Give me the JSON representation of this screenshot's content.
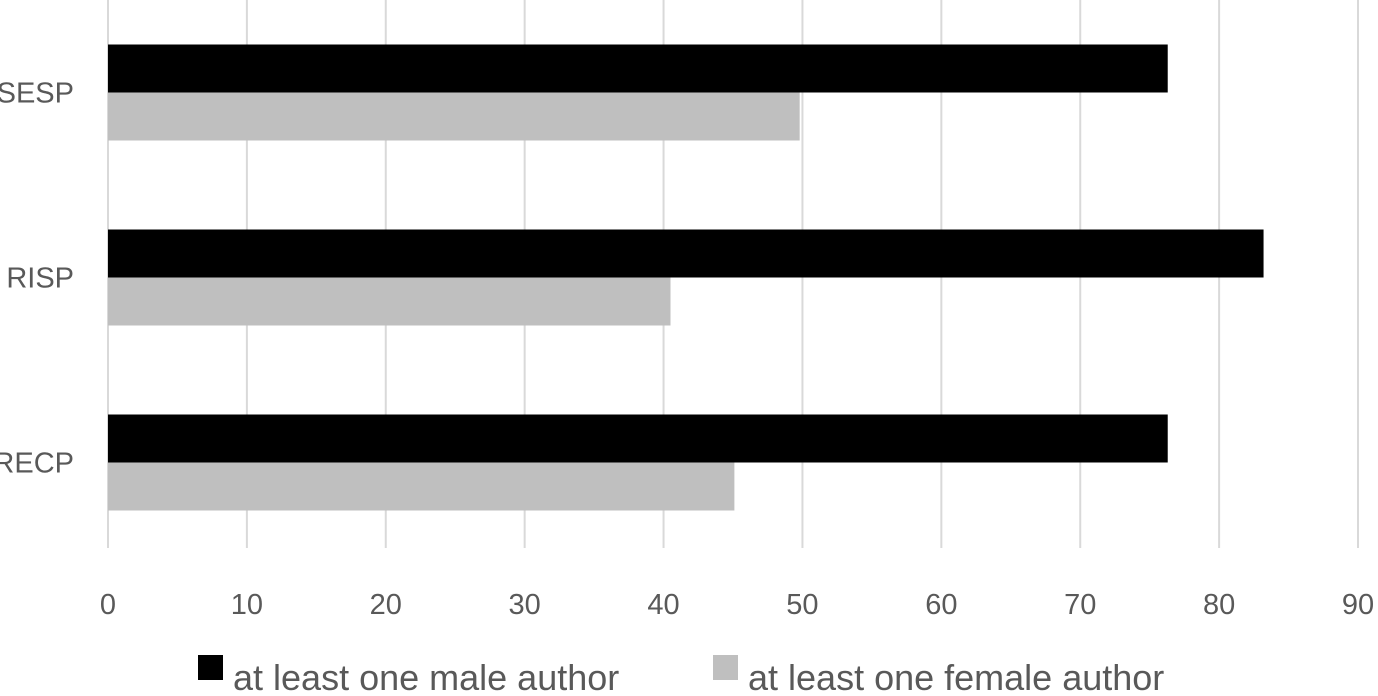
{
  "chart_data": {
    "type": "bar",
    "orientation": "horizontal",
    "categories": [
      "SESP",
      "RISP",
      "RECP"
    ],
    "series": [
      {
        "name": "at least one male author",
        "values": [
          76.3,
          83.2,
          76.3
        ],
        "color": "#000000"
      },
      {
        "name": "at least one female author",
        "values": [
          49.8,
          40.5,
          45.1
        ],
        "color": "#bfbfbf"
      }
    ],
    "x_ticks": [
      "0",
      "10",
      "20",
      "30",
      "40",
      "50",
      "60",
      "70",
      "80",
      "90"
    ],
    "xlim": [
      0,
      90
    ],
    "grid": true,
    "legend_position": "bottom",
    "title": "",
    "xlabel": "",
    "ylabel": ""
  },
  "colors": {
    "grid": "#d9d9d9",
    "axis_text": "#595959"
  }
}
